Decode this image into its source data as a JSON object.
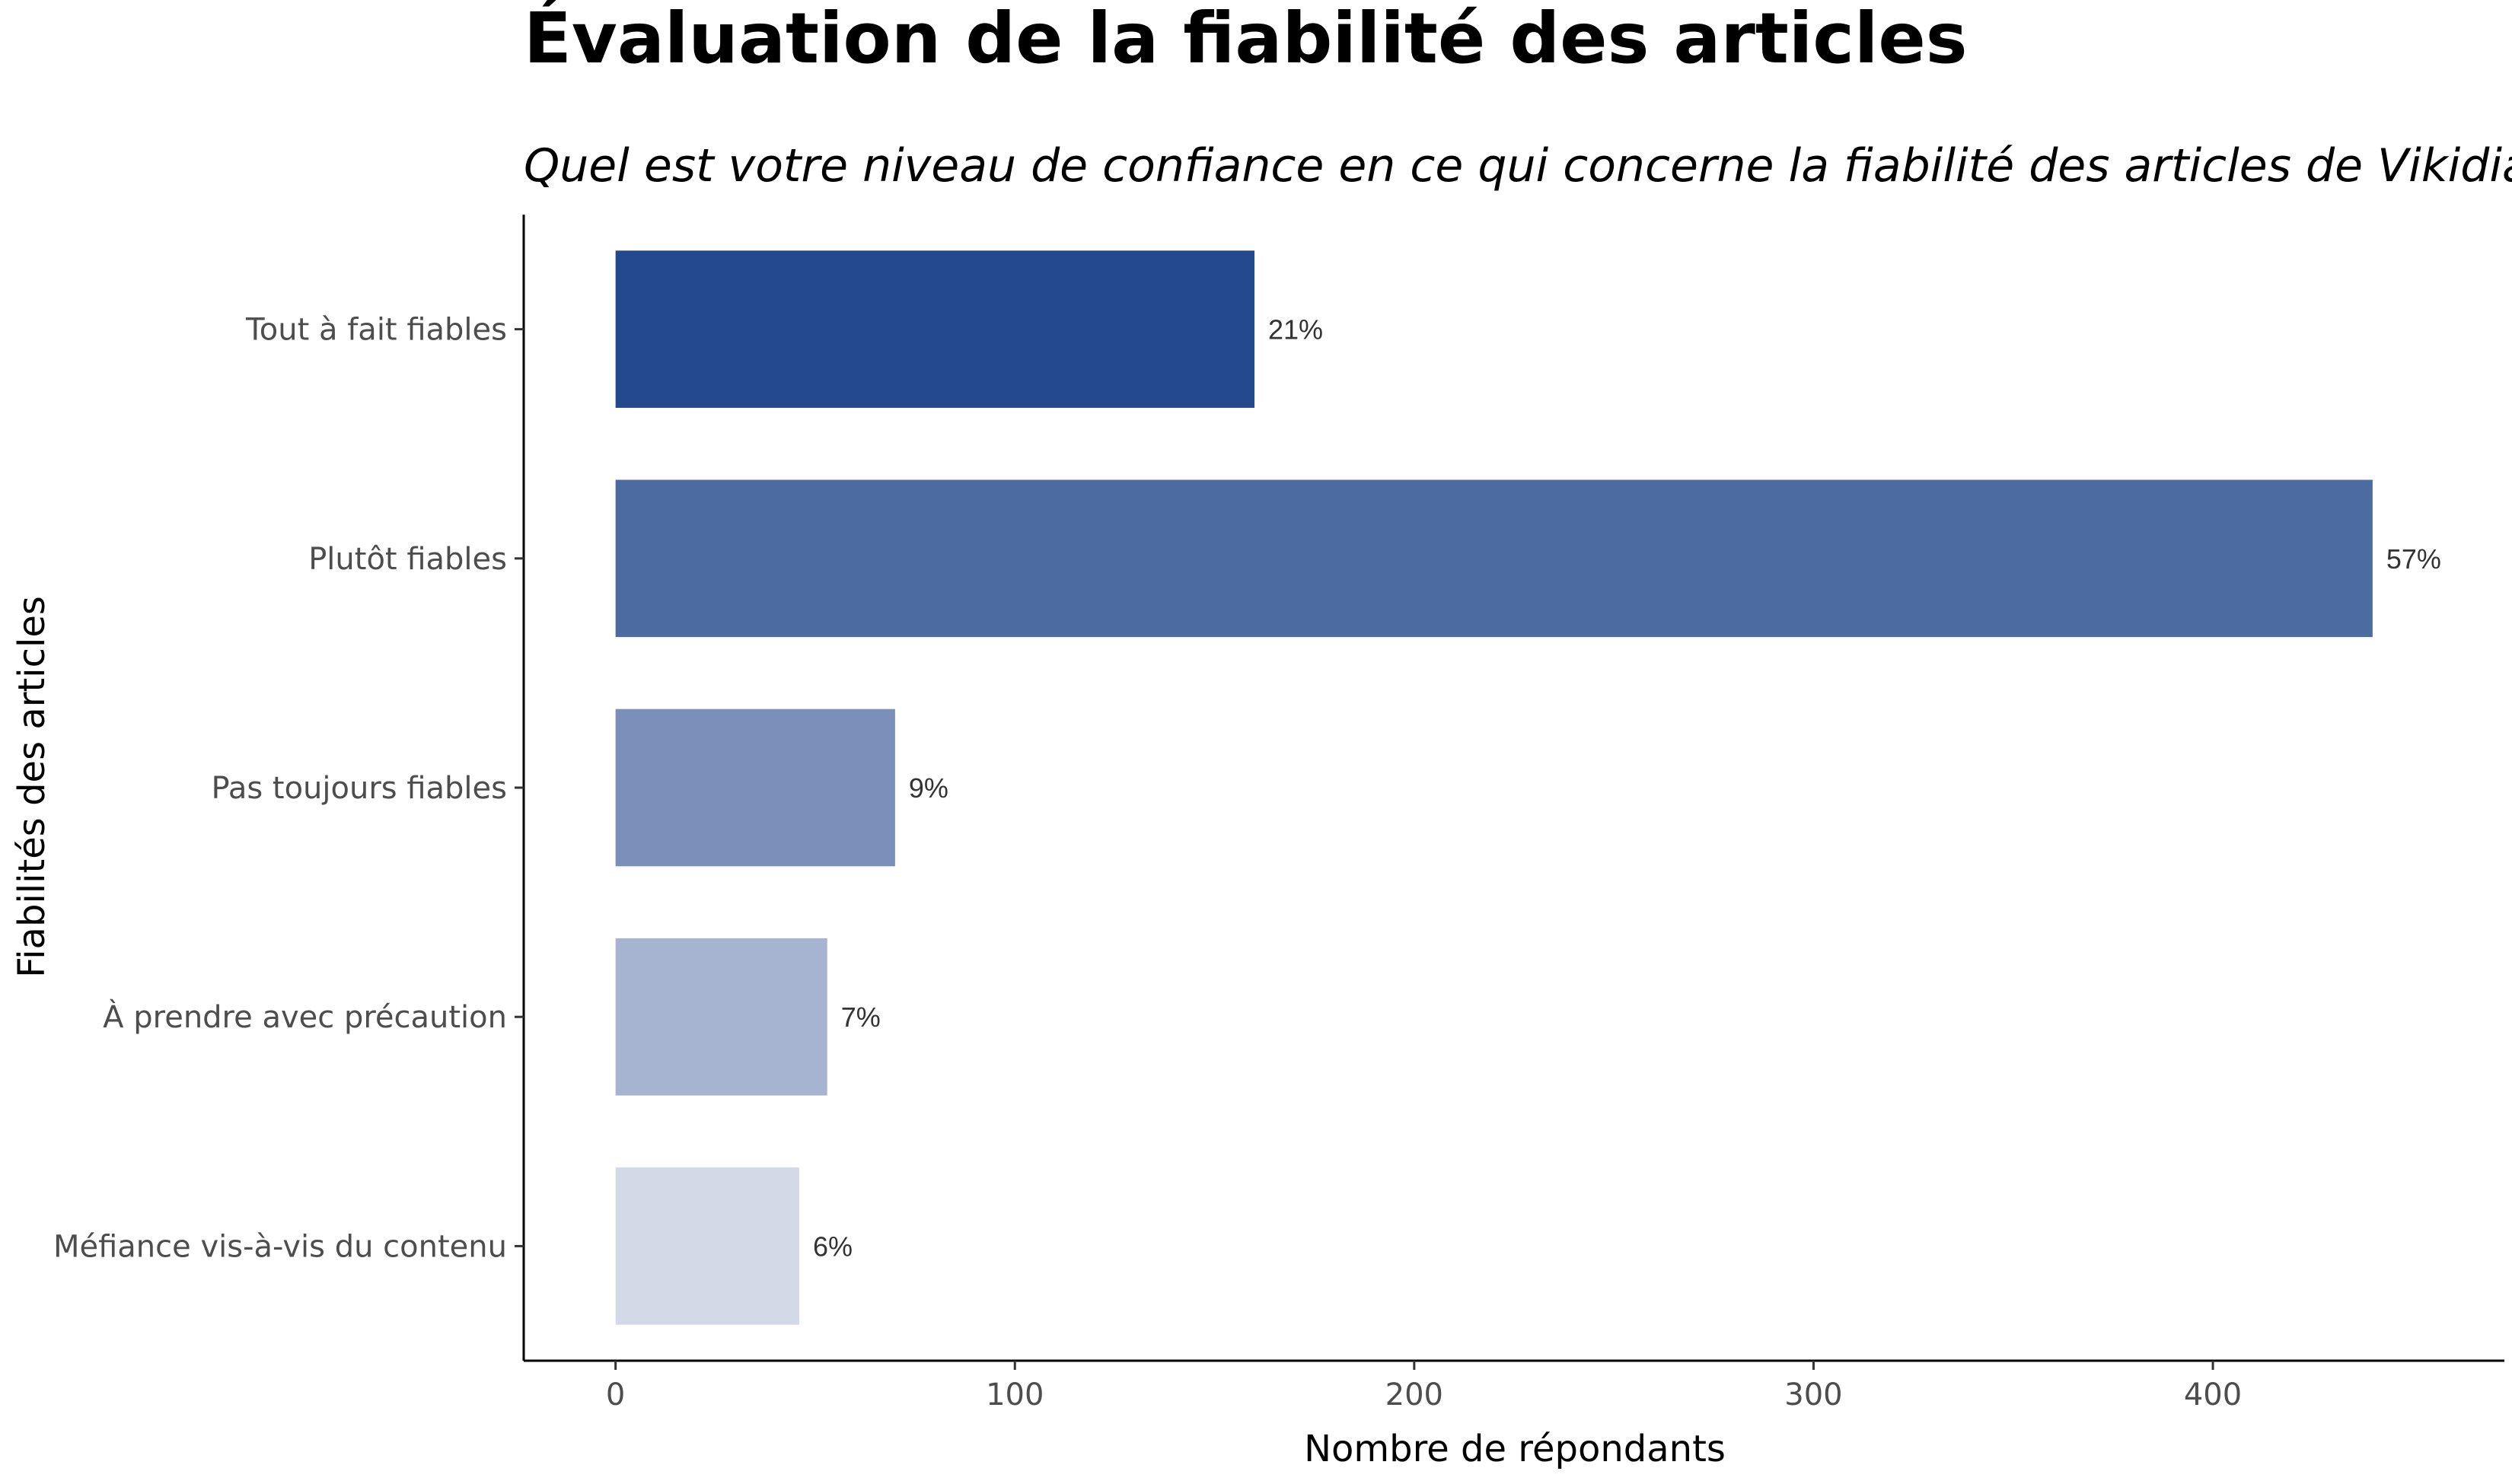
{
  "chart_data": {
    "type": "bar",
    "orientation": "horizontal",
    "title": "Évaluation de la fiabilité des articles",
    "subtitle": "Quel est votre niveau de confiance en ce qui concerne la fiabilité des articles de Vikidia ?",
    "xlabel": "Nombre de répondants",
    "ylabel": "Fiabilités des articles",
    "categories": [
      "Tout à fait fiables",
      "Plutôt fiables",
      "Pas toujours fiables",
      "À prendre avec précaution",
      "Méfiance vis-à-vis du contenu"
    ],
    "values": [
      160,
      440,
      70,
      53,
      46
    ],
    "labels": [
      "21%",
      "57%",
      "9%",
      "7%",
      "6%"
    ],
    "colors": [
      "#23488c",
      "#4c6ba1",
      "#7a90ba",
      "#a6b4d1",
      "#d3d9e7"
    ],
    "xlim": [
      -23,
      473
    ],
    "xticks": [
      0,
      100,
      200,
      300,
      400
    ],
    "xtick_labels": [
      "0",
      "100",
      "200",
      "300",
      "400"
    ],
    "grid": false,
    "legend": "none"
  }
}
